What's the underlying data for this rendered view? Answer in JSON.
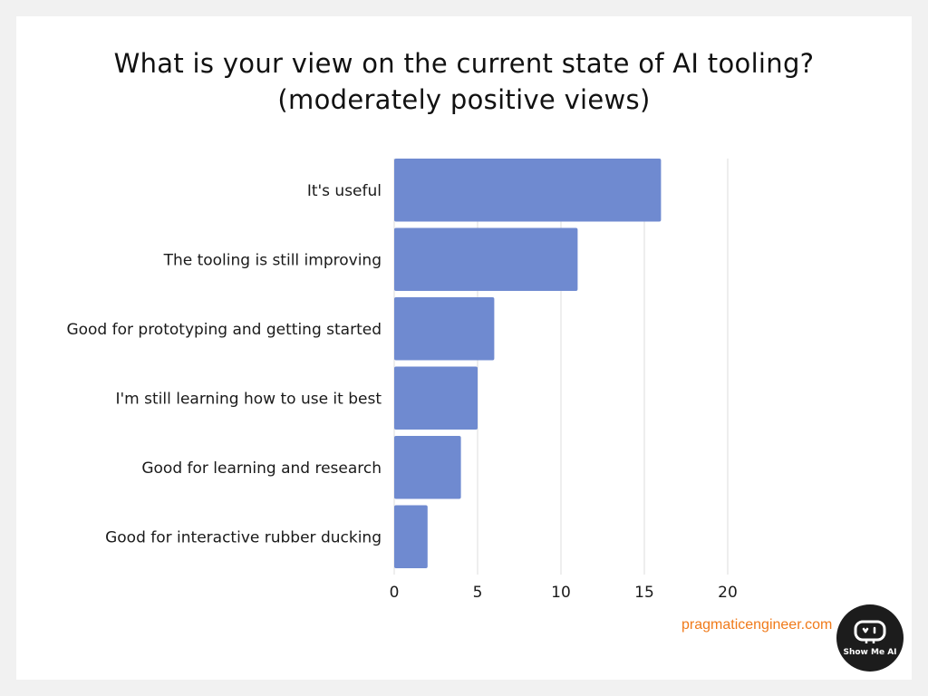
{
  "title_lines": [
    "What is your view on the current state of AI tooling?",
    "(moderately positive views)"
  ],
  "chart_data": {
    "type": "bar",
    "orientation": "horizontal",
    "categories": [
      "It's useful",
      "The tooling is still improving",
      "Good for prototyping and getting started",
      "I'm still learning how to use it best",
      "Good for learning and research",
      "Good for interactive rubber ducking"
    ],
    "values": [
      16,
      11,
      6,
      5,
      4,
      2
    ],
    "xlim": [
      0,
      20
    ],
    "xticks": [
      0,
      5,
      10,
      15,
      20
    ],
    "grid": true,
    "bar_color": "#6f8ad0"
  },
  "source": "pragmaticengineer.com",
  "badge": {
    "text": "Show Me AI",
    "icon": "robot-face-icon"
  },
  "colors": {
    "source_text": "#f07a1a",
    "badge_bg": "#1c1c1c"
  }
}
